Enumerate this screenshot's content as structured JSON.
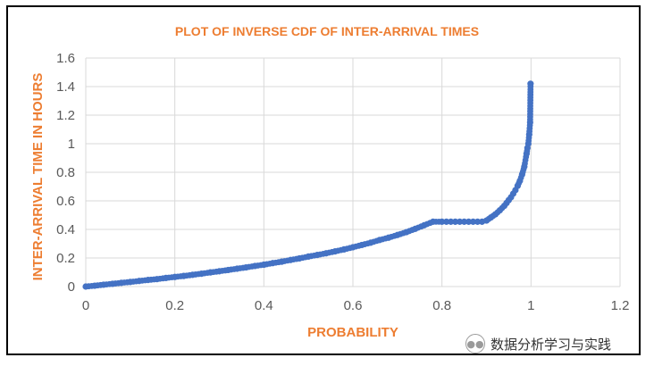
{
  "chart_data": {
    "type": "scatter",
    "title": "PLOT OF INVERSE CDF OF INTER-ARRIVAL TIMES",
    "xlabel": "PROBABILITY",
    "ylabel": "INTER-ARRIVAL TIME IN HOURS",
    "xlim": [
      0,
      1.2
    ],
    "ylim": [
      0,
      1.6
    ],
    "x_ticks": [
      "0",
      "0.2",
      "0.4",
      "0.6",
      "0.8",
      "1",
      "1.2"
    ],
    "y_ticks": [
      "0",
      "0.2",
      "0.4",
      "0.6",
      "0.8",
      "1",
      "1.2",
      "1.4",
      "1.6"
    ],
    "grid": true,
    "marker_color": "#4472c4",
    "series": [
      {
        "x": [
          0.0,
          0.02,
          0.04,
          0.06,
          0.08,
          0.1,
          0.12,
          0.14,
          0.16,
          0.18,
          0.2,
          0.22,
          0.24,
          0.26,
          0.28,
          0.3,
          0.32,
          0.34,
          0.36,
          0.38,
          0.4,
          0.42,
          0.44,
          0.46,
          0.48,
          0.5,
          0.52,
          0.54,
          0.56,
          0.58,
          0.6,
          0.62,
          0.64,
          0.66,
          0.68,
          0.7,
          0.72,
          0.74,
          0.76,
          0.78,
          0.8,
          0.81,
          0.82,
          0.83,
          0.84,
          0.85,
          0.86,
          0.87,
          0.88,
          0.89,
          0.9,
          0.91,
          0.92,
          0.93,
          0.94,
          0.945,
          0.95,
          0.955,
          0.96,
          0.965,
          0.97,
          0.975,
          0.98,
          0.985,
          0.99,
          0.992,
          0.994,
          0.996,
          0.998,
          0.999
        ],
        "y": [
          0.0,
          0.006,
          0.013,
          0.019,
          0.026,
          0.032,
          0.039,
          0.046,
          0.052,
          0.06,
          0.067,
          0.074,
          0.082,
          0.09,
          0.099,
          0.107,
          0.116,
          0.125,
          0.134,
          0.144,
          0.153,
          0.164,
          0.174,
          0.186,
          0.197,
          0.21,
          0.221,
          0.233,
          0.246,
          0.26,
          0.275,
          0.291,
          0.307,
          0.326,
          0.342,
          0.361,
          0.381,
          0.404,
          0.429,
          0.454,
          0.323,
          0.336,
          0.347,
          0.358,
          0.37,
          0.381,
          0.392,
          0.409,
          0.424,
          0.442,
          0.462,
          0.484,
          0.506,
          0.534,
          0.565,
          0.585,
          0.605,
          0.625,
          0.65,
          0.675,
          0.705,
          0.74,
          0.785,
          0.84,
          0.93,
          0.97,
          1.0,
          1.065,
          1.15,
          1.42
        ]
      }
    ]
  },
  "watermark": {
    "icon": "wechat-icon",
    "text": "数据分析学习与实践"
  }
}
